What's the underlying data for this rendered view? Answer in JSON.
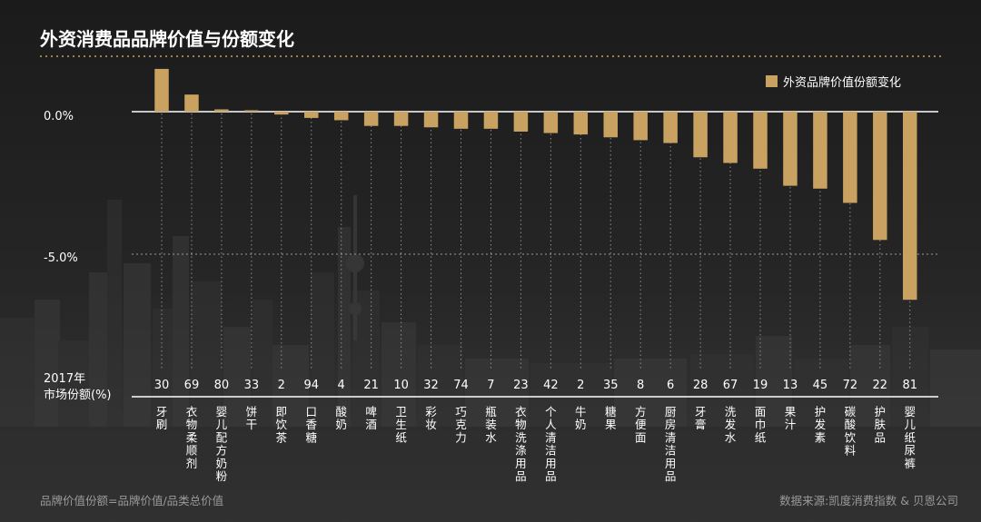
{
  "chart_data": {
    "type": "bar",
    "title": "外资消费品品牌价值与份额变化",
    "legend": {
      "label": "外资品牌价值份额变化",
      "position": "top-right"
    },
    "y_ticks": [
      "0.0%",
      "-5.0%"
    ],
    "ylim": [
      -6.5,
      1.8
    ],
    "grid": true,
    "share_row_label": [
      "2017年",
      "市场份额(%)"
    ],
    "categories": [
      "牙刷",
      "衣物柔顺剂",
      "婴儿配方奶粉",
      "饼干",
      "即饮茶",
      "口香糖",
      "酸奶",
      "啤酒",
      "卫生纸",
      "彩妆",
      "巧克力",
      "瓶装水",
      "衣物洗涤用品",
      "个人清洁用品",
      "牛奶",
      "糖果",
      "方便面",
      "厨房清洁用品",
      "牙膏",
      "洗发水",
      "面巾纸",
      "果汁",
      "护发素",
      "碳酸饮料",
      "护肤品",
      "婴儿纸尿裤"
    ],
    "shares_2017": [
      "30",
      "69",
      "80",
      "33",
      "2",
      "94",
      "4",
      "21",
      "10",
      "32",
      "74",
      "7",
      "23",
      "42",
      "2",
      "35",
      "8",
      "6",
      "28",
      "67",
      "19",
      "13",
      "45",
      "72",
      "22",
      "81"
    ],
    "values": [
      1.5,
      0.6,
      0.08,
      0.05,
      -0.1,
      -0.22,
      -0.3,
      -0.5,
      -0.5,
      -0.55,
      -0.6,
      -0.6,
      -0.7,
      -0.75,
      -0.8,
      -0.9,
      -1.0,
      -1.1,
      -1.6,
      -1.8,
      -2.0,
      -2.6,
      -2.7,
      -3.2,
      -4.5,
      -6.6
    ],
    "color": "#c9a160"
  },
  "footnote_left": "品牌价值份额=品牌价值/品类总价值",
  "footnote_right": "数据来源:凯度消费指数 & 贝恩公司"
}
